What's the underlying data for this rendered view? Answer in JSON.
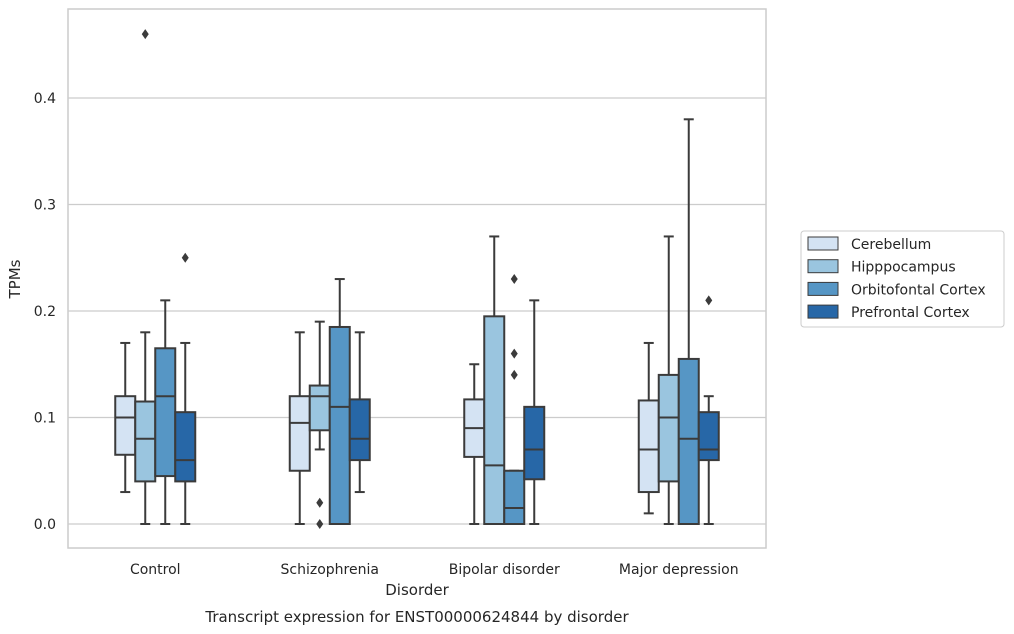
{
  "chart_data": {
    "type": "boxplot",
    "title": "",
    "caption": "Transcript expression for ENST00000624844 by disorder",
    "xlabel": "Disorder",
    "ylabel": "TPMs",
    "ylim": [
      -0.022,
      0.484
    ],
    "yticks": [
      0.0,
      0.1,
      0.2,
      0.3,
      0.4
    ],
    "ytick_labels": [
      "0.0",
      "0.1",
      "0.2",
      "0.3",
      "0.4"
    ],
    "grid": "horizontal",
    "legend_position": "right",
    "categories": [
      "Control",
      "Schizophrenia",
      "Bipolar disorder",
      "Major depression"
    ],
    "series": [
      {
        "name": "Cerebellum",
        "color": "#d4e3f3",
        "boxes": [
          {
            "min": 0.03,
            "q1": 0.065,
            "median": 0.1,
            "q3": 0.12,
            "max": 0.17,
            "outliers": []
          },
          {
            "min": 0.0,
            "q1": 0.05,
            "median": 0.095,
            "q3": 0.12,
            "max": 0.18,
            "outliers": []
          },
          {
            "min": 0.0,
            "q1": 0.063,
            "median": 0.09,
            "q3": 0.117,
            "max": 0.15,
            "outliers": []
          },
          {
            "min": 0.01,
            "q1": 0.03,
            "median": 0.07,
            "q3": 0.116,
            "max": 0.17,
            "outliers": []
          }
        ]
      },
      {
        "name": "Hipppocampus",
        "color": "#9ac5df",
        "boxes": [
          {
            "min": 0.0,
            "q1": 0.04,
            "median": 0.08,
            "q3": 0.115,
            "max": 0.18,
            "outliers": [
              0.46
            ]
          },
          {
            "min": 0.07,
            "q1": 0.088,
            "median": 0.12,
            "q3": 0.13,
            "max": 0.19,
            "outliers": [
              0.02,
              0.0
            ]
          },
          {
            "min": 0.0,
            "q1": 0.0,
            "median": 0.055,
            "q3": 0.195,
            "max": 0.27,
            "outliers": []
          },
          {
            "min": 0.0,
            "q1": 0.04,
            "median": 0.1,
            "q3": 0.14,
            "max": 0.27,
            "outliers": []
          }
        ]
      },
      {
        "name": "Orbitofontal Cortex",
        "color": "#5696c5",
        "boxes": [
          {
            "min": 0.0,
            "q1": 0.045,
            "median": 0.12,
            "q3": 0.165,
            "max": 0.21,
            "outliers": []
          },
          {
            "min": 0.0,
            "q1": 0.0,
            "median": 0.11,
            "q3": 0.185,
            "max": 0.23,
            "outliers": []
          },
          {
            "min": 0.0,
            "q1": 0.0,
            "median": 0.015,
            "q3": 0.05,
            "max": 0.05,
            "outliers": [
              0.14,
              0.16,
              0.23
            ]
          },
          {
            "min": 0.0,
            "q1": 0.0,
            "median": 0.08,
            "q3": 0.155,
            "max": 0.38,
            "outliers": []
          }
        ]
      },
      {
        "name": "Prefrontal Cortex",
        "color": "#2767a7",
        "boxes": [
          {
            "min": 0.0,
            "q1": 0.04,
            "median": 0.06,
            "q3": 0.105,
            "max": 0.17,
            "outliers": [
              0.25
            ]
          },
          {
            "min": 0.03,
            "q1": 0.06,
            "median": 0.08,
            "q3": 0.117,
            "max": 0.18,
            "outliers": []
          },
          {
            "min": 0.0,
            "q1": 0.042,
            "median": 0.07,
            "q3": 0.11,
            "max": 0.21,
            "outliers": []
          },
          {
            "min": 0.0,
            "q1": 0.06,
            "median": 0.07,
            "q3": 0.105,
            "max": 0.12,
            "outliers": [
              0.21
            ]
          }
        ]
      }
    ]
  }
}
